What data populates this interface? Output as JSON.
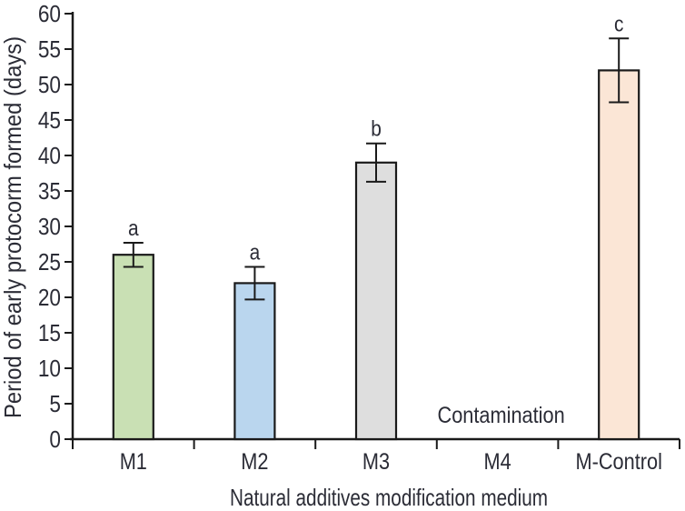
{
  "figure": {
    "background": "#ffffff"
  },
  "chart_data": {
    "type": "bar",
    "title": "",
    "xlabel": "Natural additives modification medium",
    "ylabel": "Period of early protocorm formed (days)",
    "categories": [
      "M1",
      "M2",
      "M3",
      "M4",
      "M-Control"
    ],
    "values": [
      26,
      22,
      39,
      null,
      52
    ],
    "error_bars": [
      1.7,
      2.3,
      2.7,
      null,
      4.5
    ],
    "sig_letters": [
      "a",
      "a",
      "b",
      "",
      "c"
    ],
    "bar_colors": [
      "#c9e0b4",
      "#bad6ee",
      "#dedede",
      "",
      "#fbe6d6"
    ],
    "annotation": {
      "text": "Contamination",
      "category": "M4"
    },
    "ylim": [
      0,
      60
    ],
    "ytick_step": 5,
    "grid": false,
    "legend": "none",
    "axis_color": "#1a1a1a",
    "text_color": "#2b2c36"
  }
}
